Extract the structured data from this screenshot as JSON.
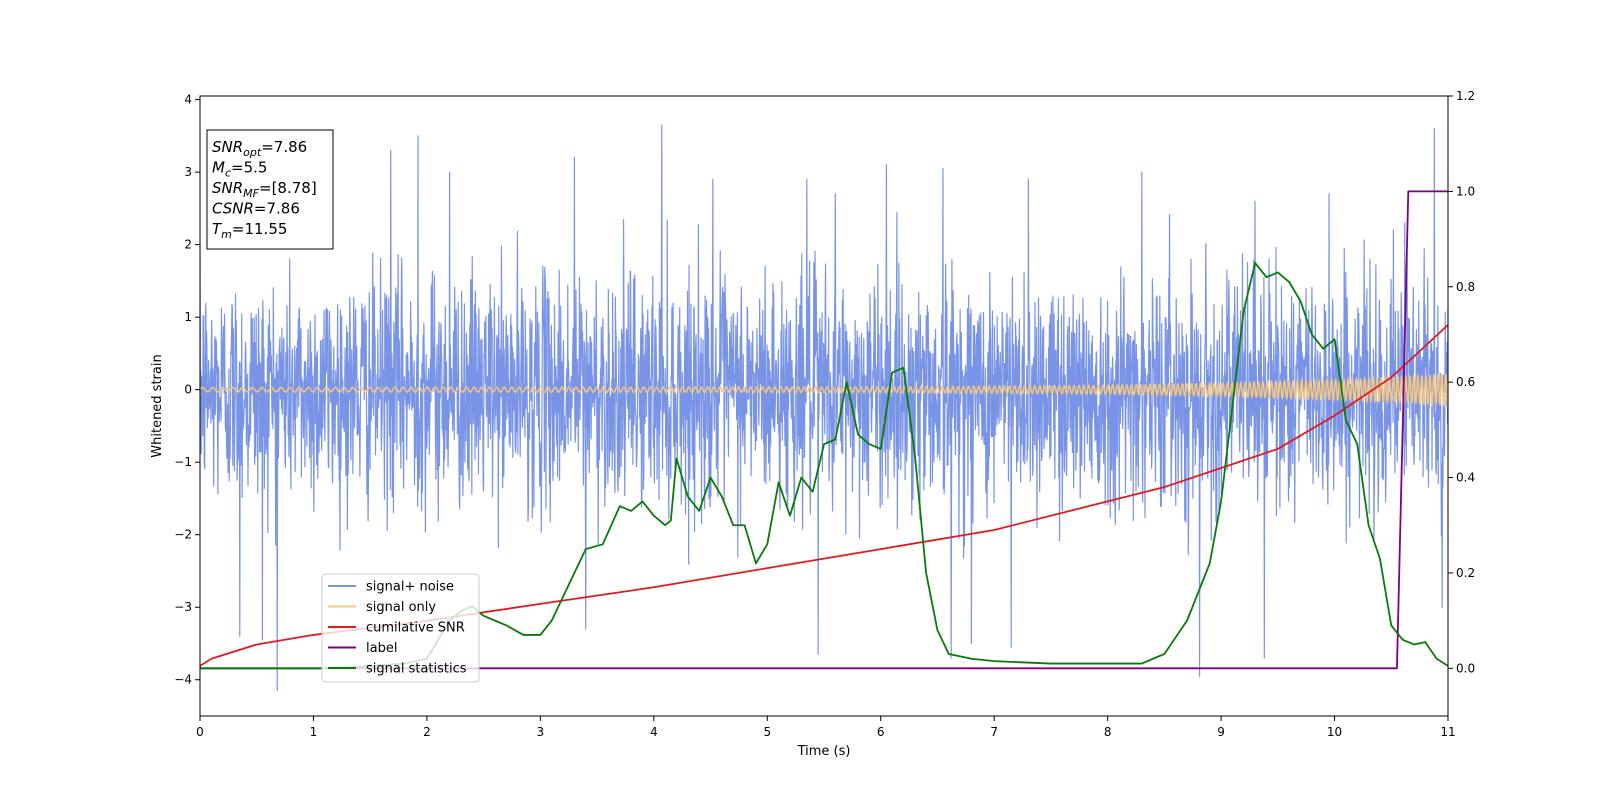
{
  "chart_data": {
    "type": "line",
    "title": "",
    "xlabel": "Time (s)",
    "ylabel": "Whitened strain",
    "y2label": "",
    "xlim": [
      0,
      11
    ],
    "ylim": [
      -4.5,
      4.05
    ],
    "y2lim": [
      -0.1,
      1.2
    ],
    "x_ticks": [
      0,
      1,
      2,
      3,
      4,
      5,
      6,
      7,
      8,
      9,
      10,
      11
    ],
    "y_ticks": [
      -4,
      -3,
      -2,
      -1,
      0,
      1,
      2,
      3,
      4
    ],
    "y2_ticks": [
      0.0,
      0.2,
      0.4,
      0.6,
      0.8,
      1.0,
      1.2
    ],
    "grid": false,
    "legend_position": "lower-left",
    "info_box": {
      "lines": [
        {
          "base": "SNR",
          "sub": "opt",
          "value": "=7.86"
        },
        {
          "base": "M",
          "sub": "c",
          "value": "=5.5"
        },
        {
          "base": "SNR",
          "sub": "MF",
          "value": "=[8.78]"
        },
        {
          "base": "CSNR",
          "sub": "",
          "value": "=7.86"
        },
        {
          "base": "T",
          "sub": "m",
          "value": "=11.55"
        }
      ]
    },
    "series": [
      {
        "name": "signal+ noise",
        "color": "#7994e6",
        "axis": "left",
        "kind": "noise",
        "std": 1.0,
        "envelope_min": [
          -1.9,
          -2.0,
          -2.1,
          -2.2,
          -2.3,
          -2.3,
          -2.3,
          -2.3,
          -2.3,
          -2.2,
          -2.1,
          -2.0
        ],
        "envelope_max": [
          2.0,
          2.3,
          2.4,
          2.4,
          2.4,
          2.4,
          2.4,
          2.4,
          2.4,
          2.4,
          2.3,
          2.1
        ],
        "peaks": [
          [
            0.68,
            -4.15
          ],
          [
            0.35,
            -3.4
          ],
          [
            0.55,
            -3.45
          ],
          [
            1.68,
            3.3
          ],
          [
            1.92,
            3.5
          ],
          [
            2.2,
            3.0
          ],
          [
            3.3,
            3.2
          ],
          [
            3.4,
            -3.3
          ],
          [
            3.4,
            2.9
          ],
          [
            4.07,
            3.65
          ],
          [
            4.07,
            -3.7
          ],
          [
            4.52,
            2.9
          ],
          [
            5.35,
            2.9
          ],
          [
            5.45,
            -3.65
          ],
          [
            5.6,
            2.7
          ],
          [
            6.05,
            3.1
          ],
          [
            6.55,
            3.05
          ],
          [
            6.62,
            -3.7
          ],
          [
            6.8,
            -3.5
          ],
          [
            7.15,
            -3.55
          ],
          [
            7.3,
            2.9
          ],
          [
            8.3,
            3.0
          ],
          [
            8.81,
            -3.95
          ],
          [
            9.3,
            2.6
          ],
          [
            9.38,
            -3.7
          ],
          [
            9.95,
            2.7
          ],
          [
            10.62,
            2.3
          ],
          [
            10.88,
            3.6
          ],
          [
            10.95,
            -3.0
          ]
        ]
      },
      {
        "name": "signal only",
        "color": "#f5c77e",
        "axis": "left",
        "kind": "chirp",
        "amplitude": [
          [
            0,
            0.03
          ],
          [
            6,
            0.04
          ],
          [
            8,
            0.06
          ],
          [
            9,
            0.09
          ],
          [
            10,
            0.14
          ],
          [
            10.6,
            0.18
          ],
          [
            11,
            0.22
          ]
        ]
      },
      {
        "name": "cumilative SNR",
        "color": "#e41a1c",
        "axis": "right",
        "kind": "line",
        "x": [
          0,
          0.1,
          0.5,
          1,
          2,
          3,
          4,
          5,
          6,
          7,
          8,
          8.5,
          9,
          9.5,
          10,
          10.5,
          11
        ],
        "y": [
          0.005,
          0.02,
          0.05,
          0.07,
          0.1,
          0.135,
          0.17,
          0.21,
          0.25,
          0.29,
          0.35,
          0.38,
          0.42,
          0.46,
          0.53,
          0.61,
          0.72
        ]
      },
      {
        "name": "label",
        "color": "#800080",
        "axis": "right",
        "kind": "line",
        "x": [
          0,
          10.55,
          10.65,
          11
        ],
        "y": [
          0,
          0,
          1,
          1
        ]
      },
      {
        "name": "signal statistics",
        "color": "#0a7a0a",
        "axis": "right",
        "kind": "line",
        "x": [
          0,
          0.5,
          1,
          1.2,
          1.5,
          1.8,
          2.0,
          2.1,
          2.2,
          2.3,
          2.4,
          2.5,
          2.7,
          2.85,
          3.0,
          3.1,
          3.2,
          3.3,
          3.4,
          3.55,
          3.7,
          3.8,
          3.9,
          4.0,
          4.1,
          4.15,
          4.2,
          4.3,
          4.4,
          4.5,
          4.6,
          4.7,
          4.8,
          4.9,
          5.0,
          5.1,
          5.2,
          5.3,
          5.4,
          5.5,
          5.6,
          5.7,
          5.8,
          5.9,
          6.0,
          6.1,
          6.2,
          6.3,
          6.4,
          6.5,
          6.6,
          6.8,
          7.0,
          7.5,
          8.0,
          8.3,
          8.5,
          8.7,
          8.9,
          9.0,
          9.1,
          9.2,
          9.3,
          9.4,
          9.5,
          9.6,
          9.7,
          9.8,
          9.9,
          10.0,
          10.1,
          10.2,
          10.3,
          10.4,
          10.5,
          10.6,
          10.7,
          10.8,
          10.9,
          11.0
        ],
        "y": [
          0.0,
          0.0,
          0.0,
          0.0,
          0.005,
          0.01,
          0.02,
          0.06,
          0.1,
          0.12,
          0.13,
          0.11,
          0.09,
          0.07,
          0.07,
          0.1,
          0.15,
          0.2,
          0.25,
          0.26,
          0.34,
          0.33,
          0.35,
          0.32,
          0.3,
          0.31,
          0.44,
          0.36,
          0.33,
          0.4,
          0.36,
          0.3,
          0.3,
          0.22,
          0.26,
          0.39,
          0.32,
          0.4,
          0.37,
          0.47,
          0.48,
          0.6,
          0.49,
          0.47,
          0.46,
          0.62,
          0.63,
          0.45,
          0.2,
          0.08,
          0.03,
          0.02,
          0.015,
          0.01,
          0.01,
          0.01,
          0.03,
          0.1,
          0.22,
          0.35,
          0.55,
          0.75,
          0.85,
          0.82,
          0.83,
          0.81,
          0.77,
          0.7,
          0.67,
          0.69,
          0.52,
          0.47,
          0.3,
          0.23,
          0.09,
          0.06,
          0.05,
          0.055,
          0.02,
          0.005
        ]
      }
    ]
  }
}
